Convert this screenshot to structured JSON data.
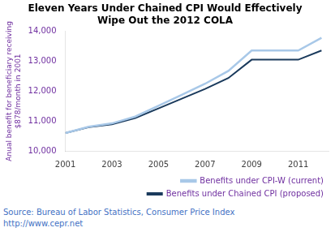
{
  "chart_data": {
    "type": "line",
    "title": "Eleven Years Under Chained CPI Would Effectively\nWipe Out the 2012 COLA",
    "ylabel": "Anual benefit for beneficiary receiving\n$878/month in 2001",
    "x": [
      2001,
      2002,
      2003,
      2004,
      2005,
      2006,
      2007,
      2008,
      2009,
      2010,
      2011,
      2012
    ],
    "series": [
      {
        "name": "Benefits under CPI-W (current)",
        "color": "#a8c8e8",
        "values": [
          10596,
          10810,
          10921,
          11148,
          11511,
          11877,
          12249,
          12680,
          13363,
          13363,
          13363,
          13788
        ]
      },
      {
        "name": "Benefits under Chained CPI (proposed)",
        "color": "#1a3a5c",
        "values": [
          10596,
          10796,
          10888,
          11100,
          11422,
          11750,
          12077,
          12440,
          13054,
          13054,
          13054,
          13363
        ]
      }
    ],
    "xlim": [
      2001,
      2012.3
    ],
    "xticks": [
      2001,
      2003,
      2005,
      2007,
      2009,
      2011
    ],
    "ylim": [
      10000,
      14000
    ],
    "yticks": [
      {
        "value": 10000,
        "label": "10,000"
      },
      {
        "value": 11000,
        "label": "11,000"
      },
      {
        "value": 12000,
        "label": "12,000"
      },
      {
        "value": 13000,
        "label": "13,000"
      },
      {
        "value": 14000,
        "label": "14,000"
      }
    ],
    "grid": false,
    "legend": "lower right",
    "annotations": [
      "Source: Bureau of Labor Statistics, Consumer Price Index",
      "http://www.cepr.net"
    ]
  }
}
